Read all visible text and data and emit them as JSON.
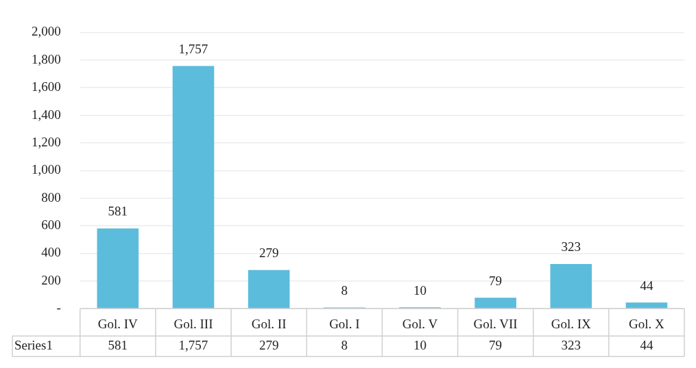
{
  "chart_data": {
    "type": "bar",
    "categories": [
      "Gol. IV",
      "Gol. III",
      "Gol. II",
      "Gol. I",
      "Gol. V",
      "Gol. VII",
      "Gol. IX",
      "Gol. X"
    ],
    "series": [
      {
        "name": "Series1",
        "color": "#5bbcdc",
        "values": [
          581,
          1757,
          279,
          8,
          10,
          79,
          323,
          44
        ],
        "value_labels": [
          "581",
          "1,757",
          "279",
          "8",
          "10",
          "79",
          "323",
          "44"
        ]
      }
    ],
    "ylim": [
      0,
      2000
    ],
    "yticks": [
      {
        "value": 0,
        "label": "-"
      },
      200,
      400,
      600,
      800,
      {
        "value": 1000,
        "label": "1,000"
      },
      {
        "value": 1200,
        "label": "1,200"
      },
      {
        "value": 1400,
        "label": "1,400"
      },
      {
        "value": 1600,
        "label": "1,600"
      },
      {
        "value": 1800,
        "label": "1,800"
      },
      {
        "value": 2000,
        "label": "2,000"
      }
    ],
    "grid": "y",
    "legend": false
  }
}
